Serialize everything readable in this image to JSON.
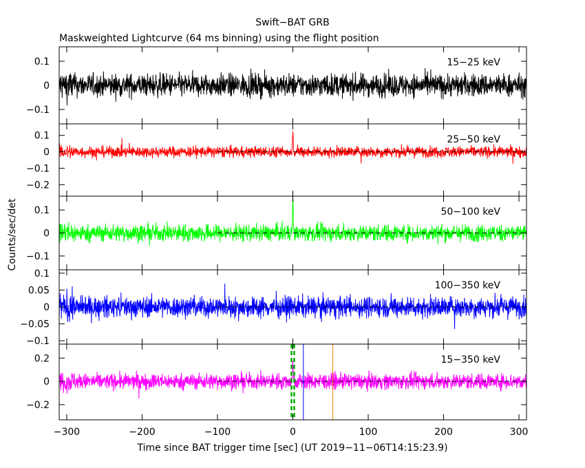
{
  "title": "Swift−BAT GRB",
  "subtitle": "Maskweighted Lightcurve (64 ms binning) using the flight position",
  "colors": {
    "frame": "#000000",
    "trigger_marker": "#00aa00",
    "blue_marker": "#0000ff",
    "orange_marker": "#ff8800"
  },
  "chart_data": {
    "type": "line",
    "xlabel": "Time since BAT trigger time [sec] (UT 2019−11−06T14:15:23.9)",
    "ylabel": "Counts/sec/det",
    "xlim": [
      -310,
      310
    ],
    "x_ticks": [
      -300,
      -200,
      -100,
      0,
      100,
      200,
      300
    ],
    "x_tick_labels": [
      "−300",
      "−200",
      "−100",
      "0",
      "100",
      "200",
      "300"
    ],
    "markers": [
      {
        "name": "trigger",
        "x": 0,
        "style": "dashed",
        "color": "#00aa00"
      },
      {
        "name": "blue",
        "x": 14,
        "style": "solid",
        "color": "#0000ff"
      },
      {
        "name": "orange",
        "x": 53,
        "style": "solid",
        "color": "#ff8800"
      }
    ],
    "panels": [
      {
        "label": "15−25 keV",
        "color": "#000000",
        "label_color": "#000000",
        "ylim": [
          -0.16,
          0.16
        ],
        "yticks": [
          -0.1,
          0,
          0.1
        ],
        "ytick_labels": [
          "−0.1",
          "0",
          "0.1"
        ],
        "noise_amplitude": 0.085,
        "baseline": false,
        "spike": 0
      },
      {
        "label": "25−50 keV",
        "color": "#ff0000",
        "label_color": "#ff0000",
        "ylim": [
          -0.27,
          0.17
        ],
        "yticks": [
          -0.2,
          -0.1,
          0,
          0.1
        ],
        "ytick_labels": [
          "−0.2",
          "−0.1",
          "0",
          "0.1"
        ],
        "noise_amplitude": 0.06,
        "baseline": true,
        "spike": 0.13
      },
      {
        "label": "50−100 keV",
        "color": "#00ff00",
        "label_color": "#00ff00",
        "ylim": [
          -0.16,
          0.16
        ],
        "yticks": [
          -0.1,
          0,
          0.1
        ],
        "ytick_labels": [
          "−0.1",
          "0",
          "0.1"
        ],
        "noise_amplitude": 0.065,
        "baseline": true,
        "spike": 0.16
      },
      {
        "label": "100−350 keV",
        "color": "#0000ff",
        "label_color": "#0000ff",
        "ylim": [
          -0.11,
          0.11
        ],
        "yticks": [
          -0.1,
          -0.05,
          0,
          0.05,
          0.1
        ],
        "ytick_labels": [
          "−0.1",
          "−0.05",
          "0",
          "0.05",
          "0.1"
        ],
        "noise_amplitude": 0.055,
        "baseline": true,
        "spike": 0
      },
      {
        "label": "15−350 keV",
        "color": "#ff00ff",
        "label_color": "#ff00ff",
        "ylim": [
          -0.33,
          0.32
        ],
        "yticks": [
          -0.2,
          0,
          0.2
        ],
        "ytick_labels": [
          "−0.2",
          "0",
          "0.2"
        ],
        "noise_amplitude": 0.12,
        "baseline": true,
        "spike": 0.2
      }
    ]
  }
}
